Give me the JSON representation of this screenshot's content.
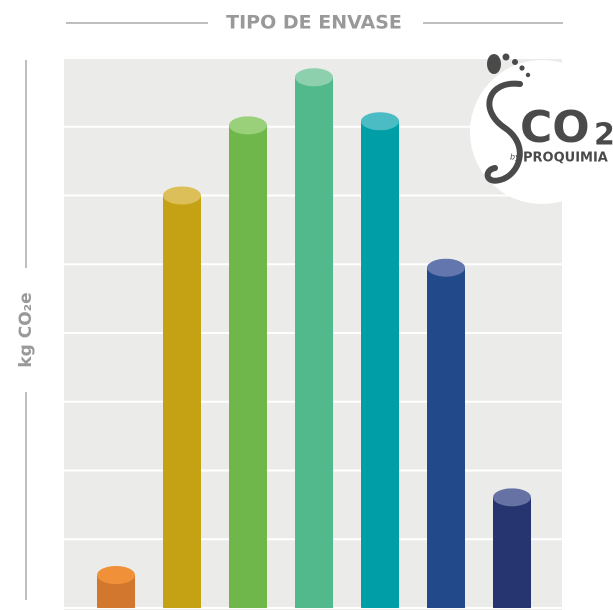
{
  "chart_data": {
    "type": "bar",
    "title": "TIPO DE ENVASE",
    "y_label": "kg CO₂e",
    "categories": [
      null,
      null,
      null,
      null,
      null,
      null,
      null
    ],
    "values": [
      0.48,
      6.0,
      7.02,
      7.72,
      7.08,
      4.95,
      1.61
    ],
    "colors": [
      "#d2772e",
      "#c4a213",
      "#6fb74a",
      "#52b98c",
      "#009ea6",
      "#22498a",
      "#263570"
    ],
    "top_colors": [
      "#f0913a",
      "#dcbf58",
      "#9ad07a",
      "#8dd0ae",
      "#4cbcc4",
      "#6376ae",
      "#6672a4"
    ],
    "ylim": [
      0,
      8
    ],
    "yticks": [
      0,
      1,
      2,
      3,
      4,
      5,
      6,
      7,
      8
    ],
    "grid": true
  },
  "logo": {
    "mark": "CO",
    "sub": "2",
    "by": "by",
    "brand": "PROQUIMIA"
  }
}
